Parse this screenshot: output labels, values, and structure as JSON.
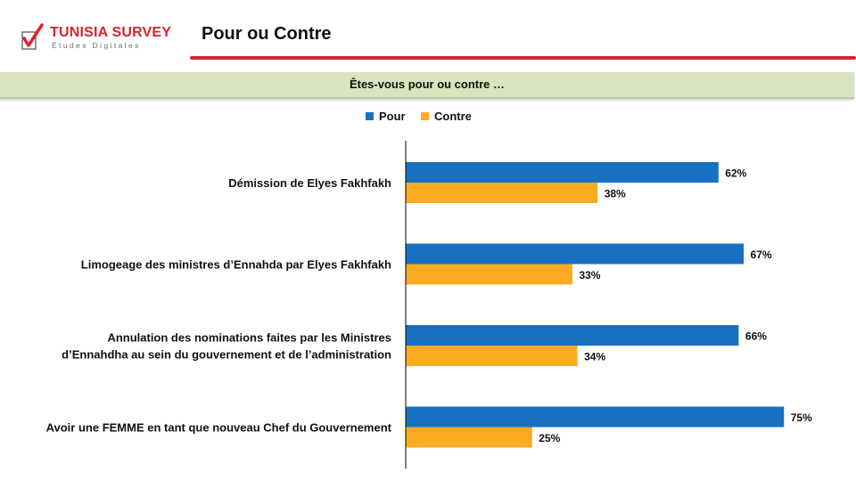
{
  "brand": {
    "name": "TUNISIA SURVEY",
    "tagline": "Études Digitales",
    "accent_color": "#d9232e"
  },
  "page": {
    "title": "Pour ou Contre"
  },
  "question": "Êtes-vous pour ou contre …",
  "colors": {
    "pour": "#1870c1",
    "contre": "#f9ac22"
  },
  "chart_data": {
    "type": "bar",
    "orientation": "horizontal",
    "categories": [
      [
        "Démission de Elyes Fakhfakh"
      ],
      [
        "Limogeage des ministres d’Ennahda par Elyes Fakhfakh"
      ],
      [
        "Annulation des nominations faites par les Ministres",
        "d’Ennahdha au sein du gouvernement et de l’administration"
      ],
      [
        "Avoir une FEMME en tant que nouveau Chef du Gouvernement"
      ]
    ],
    "series": [
      {
        "name": "Pour",
        "values": [
          62,
          67,
          66,
          75
        ],
        "labels": [
          "62%",
          "67%",
          "66%",
          "75%"
        ]
      },
      {
        "name": "Contre",
        "values": [
          38,
          33,
          34,
          25
        ],
        "labels": [
          "38%",
          "33%",
          "34%",
          "25%"
        ]
      }
    ],
    "xlim": [
      0,
      100
    ],
    "grid": false,
    "legend_position": "top"
  }
}
